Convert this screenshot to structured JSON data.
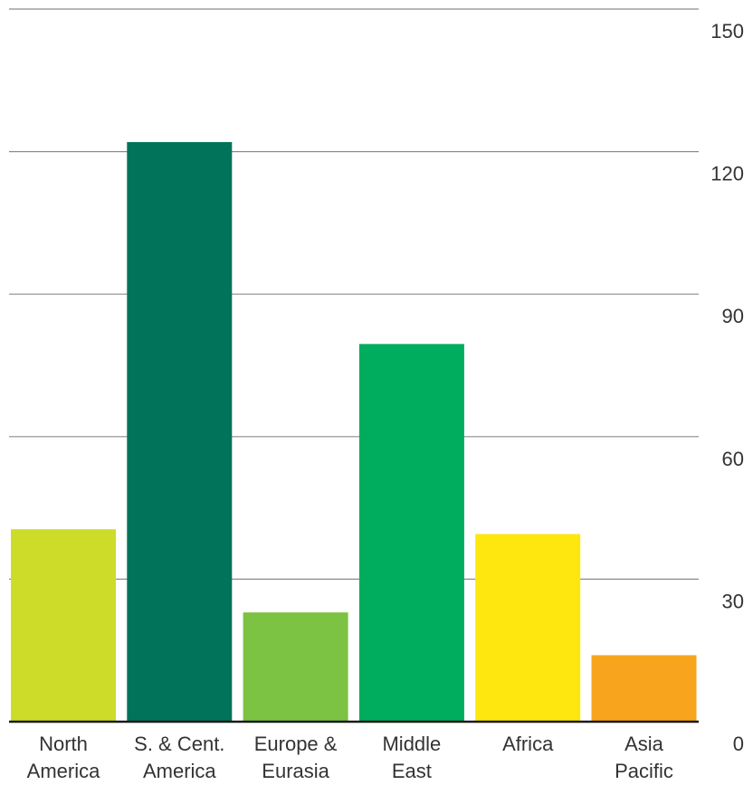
{
  "chart_data": {
    "type": "bar",
    "title": "",
    "xlabel": "",
    "ylabel": "",
    "categories": [
      [
        "North",
        "America"
      ],
      [
        "S. & Cent.",
        "America"
      ],
      [
        "Europe &",
        "Eurasia"
      ],
      [
        "Middle",
        "East"
      ],
      [
        "Africa"
      ],
      [
        "Asia",
        "Pacific"
      ]
    ],
    "values": [
      40.5,
      122,
      23,
      79.5,
      39.5,
      14
    ],
    "colors": [
      "#cddc29",
      "#00735a",
      "#7cc243",
      "#00ad5f",
      "#fee60f",
      "#f8a51d"
    ],
    "ylim": [
      0,
      150
    ],
    "yticks": [
      "0",
      "30",
      "60",
      "90",
      "120",
      "150"
    ],
    "y_axis_position": "right",
    "grid": true
  }
}
